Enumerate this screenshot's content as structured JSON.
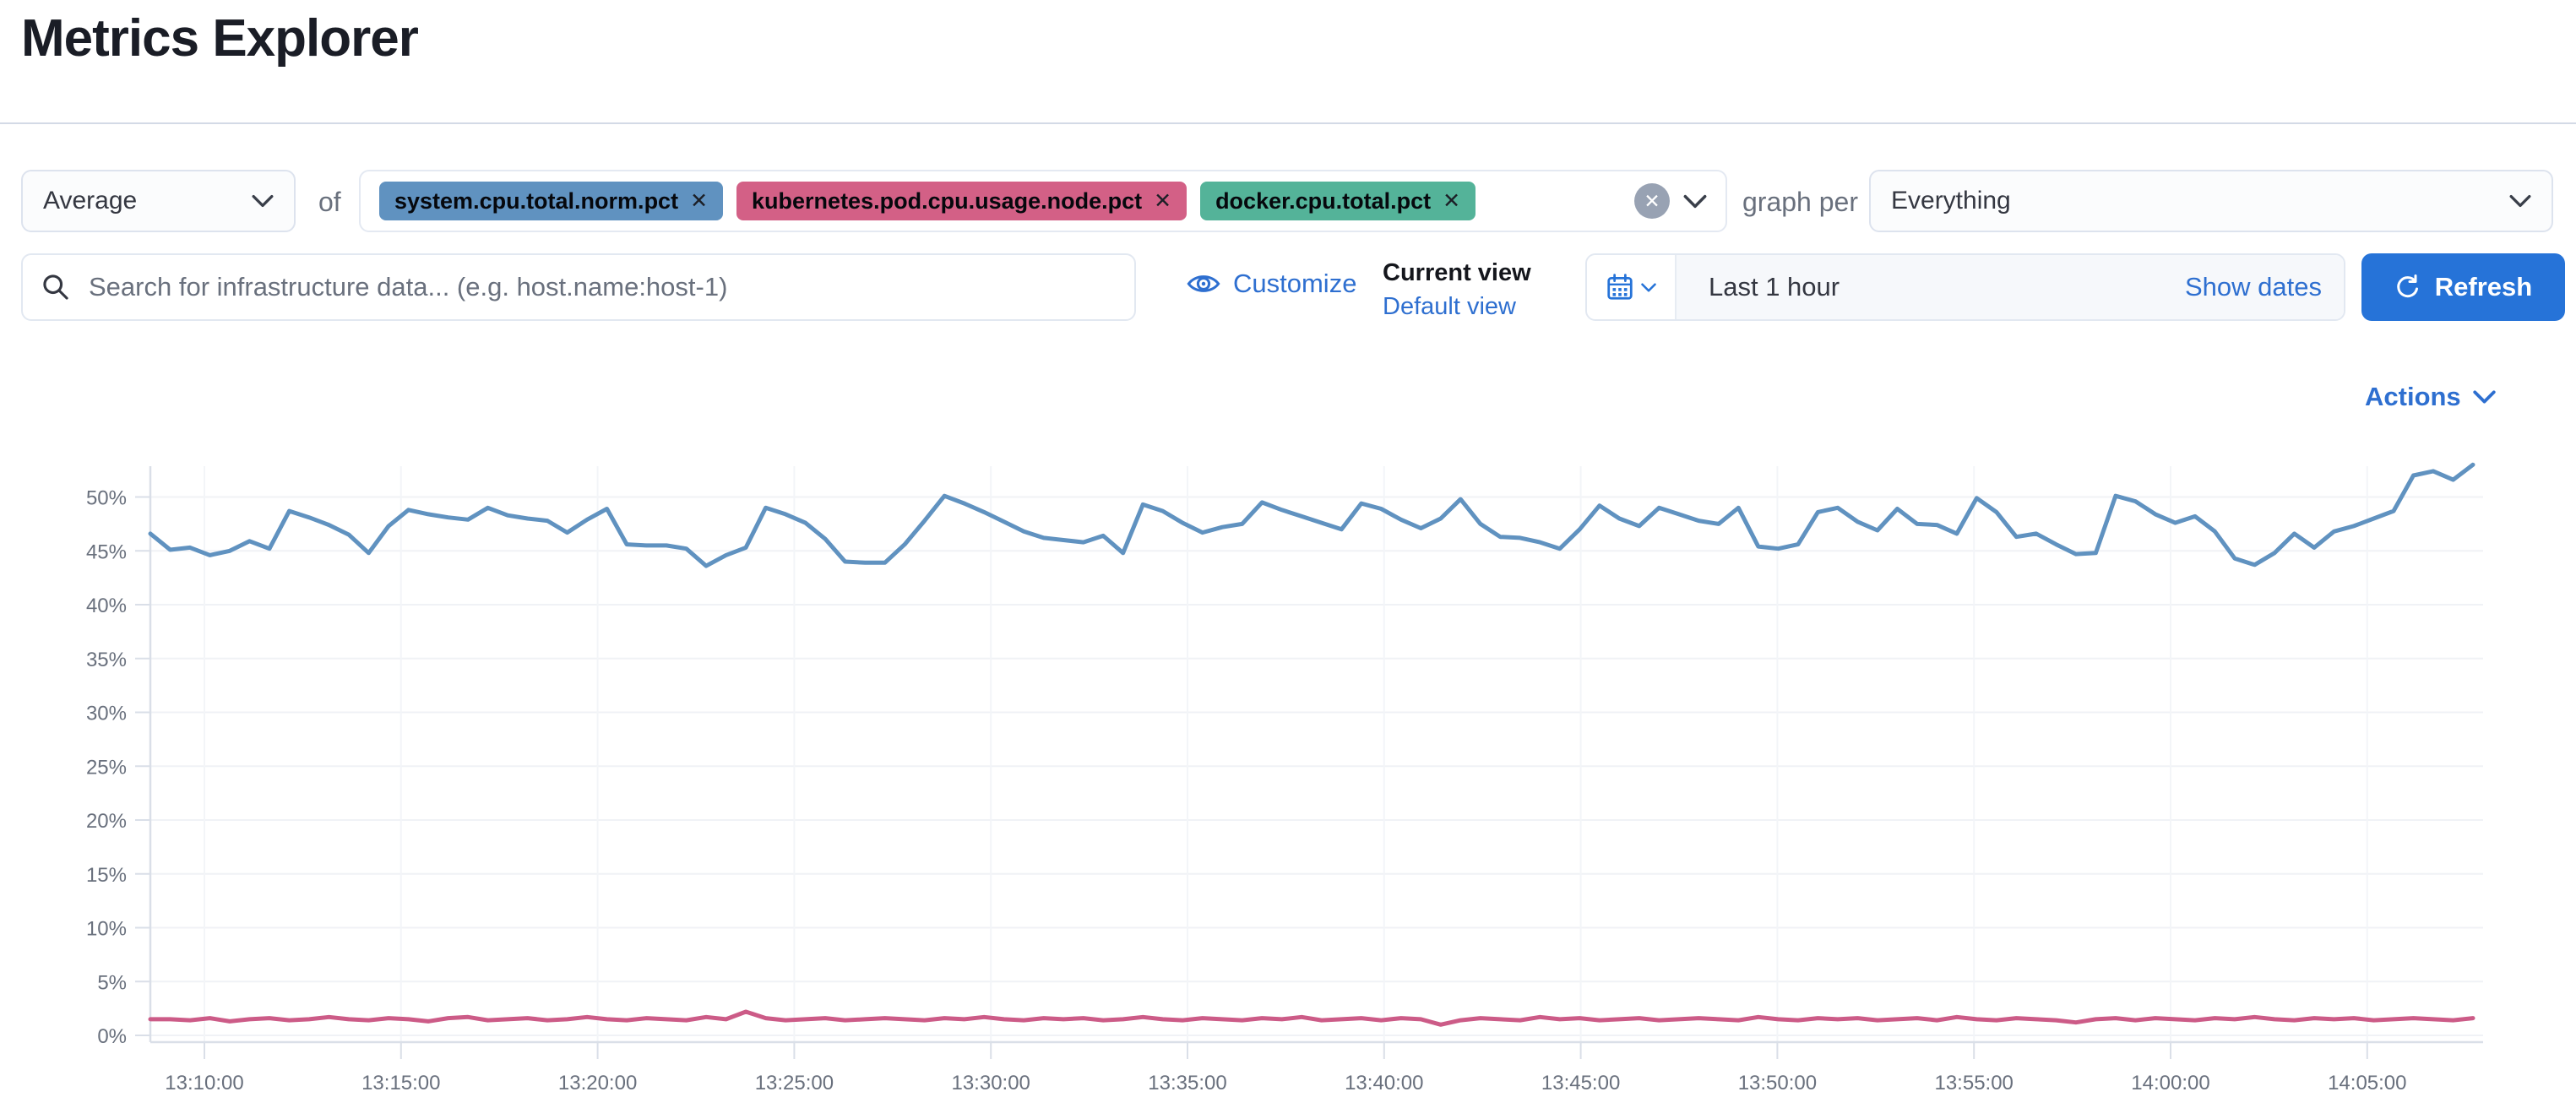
{
  "header": {
    "title": "Metrics Explorer"
  },
  "toolbar": {
    "aggregation": {
      "value": "Average"
    },
    "of_label": "of",
    "metrics": [
      {
        "label": "system.cpu.total.norm.pct",
        "color": "#6092C0",
        "remove_icon": "cross"
      },
      {
        "label": "kubernetes.pod.cpu.usage.node.pct",
        "color": "#D36086",
        "remove_icon": "cross"
      },
      {
        "label": "docker.cpu.total.pct",
        "color": "#54B399",
        "remove_icon": "cross"
      }
    ],
    "graph_per_label": "graph per",
    "graph_per": {
      "value": "Everything"
    }
  },
  "search": {
    "placeholder": "Search for infrastructure data... (e.g. host.name:host-1)"
  },
  "view_controls": {
    "customize_label": "Customize",
    "current_view_label": "Current view",
    "default_view_label": "Default view"
  },
  "datepicker": {
    "value": "Last 1 hour",
    "show_dates_label": "Show dates",
    "refresh_label": "Refresh"
  },
  "actions_label": "Actions",
  "colors": {
    "primary_blue": "#2673d8",
    "link_blue": "#2e6fd0",
    "axis_text": "#69707d",
    "gridline": "#f0f2f6",
    "axis_line": "#dadfe8"
  },
  "chart_data": {
    "type": "line",
    "title": "",
    "xlabel": "",
    "ylabel": "",
    "ylim": [
      0,
      55
    ],
    "grid": true,
    "legend_position": "none",
    "x_tick_labels": [
      "13:10:00",
      "13:15:00",
      "13:20:00",
      "13:25:00",
      "13:30:00",
      "13:35:00",
      "13:40:00",
      "13:45:00",
      "13:50:00",
      "13:55:00",
      "14:00:00",
      "14:05:00"
    ],
    "y_tick_labels": [
      "0%",
      "5%",
      "10%",
      "15%",
      "20%",
      "25%",
      "30%",
      "35%",
      "40%",
      "45%",
      "50%"
    ],
    "y_tick_values": [
      0,
      5,
      10,
      15,
      20,
      25,
      30,
      35,
      40,
      45,
      50
    ],
    "series": [
      {
        "name": "system.cpu.total.norm.pct",
        "color": "#6092C0",
        "unit": "%",
        "values": [
          46.6,
          45.1,
          45.3,
          44.6,
          45.0,
          45.9,
          45.2,
          48.7,
          48.1,
          47.4,
          46.5,
          44.8,
          47.3,
          48.8,
          48.4,
          48.1,
          47.9,
          49.0,
          48.3,
          48.0,
          47.8,
          46.7,
          47.9,
          48.9,
          45.6,
          45.5,
          45.5,
          45.2,
          43.6,
          44.6,
          45.3,
          49.0,
          48.4,
          47.6,
          46.1,
          44.0,
          43.9,
          43.9,
          45.6,
          47.8,
          50.1,
          49.4,
          48.6,
          47.7,
          46.8,
          46.2,
          46.0,
          45.8,
          46.4,
          44.8,
          49.3,
          48.7,
          47.6,
          46.7,
          47.2,
          47.5,
          49.5,
          48.8,
          48.2,
          47.6,
          47.0,
          49.4,
          48.9,
          47.9,
          47.1,
          48.0,
          49.8,
          47.5,
          46.3,
          46.2,
          45.8,
          45.2,
          47.0,
          49.2,
          48.0,
          47.3,
          49.0,
          48.4,
          47.8,
          47.5,
          49.0,
          45.4,
          45.2,
          45.6,
          48.6,
          49.0,
          47.7,
          46.9,
          48.9,
          47.5,
          47.4,
          46.6,
          49.9,
          48.6,
          46.3,
          46.6,
          45.6,
          44.7,
          44.8,
          50.1,
          49.6,
          48.4,
          47.6,
          48.2,
          46.8,
          44.3,
          43.7,
          44.8,
          46.6,
          45.3,
          46.8,
          47.3,
          48.0,
          48.7,
          52.0,
          52.4,
          51.6,
          53.0
        ]
      },
      {
        "name": "kubernetes.pod.cpu.usage.node.pct",
        "color": "#CC5B87",
        "unit": "%",
        "values": [
          1.5,
          1.5,
          1.4,
          1.6,
          1.3,
          1.5,
          1.6,
          1.4,
          1.5,
          1.7,
          1.5,
          1.4,
          1.6,
          1.5,
          1.3,
          1.6,
          1.7,
          1.4,
          1.5,
          1.6,
          1.4,
          1.5,
          1.7,
          1.5,
          1.4,
          1.6,
          1.5,
          1.4,
          1.7,
          1.5,
          2.2,
          1.6,
          1.4,
          1.5,
          1.6,
          1.4,
          1.5,
          1.6,
          1.5,
          1.4,
          1.6,
          1.5,
          1.7,
          1.5,
          1.4,
          1.6,
          1.5,
          1.6,
          1.4,
          1.5,
          1.7,
          1.5,
          1.4,
          1.6,
          1.5,
          1.4,
          1.6,
          1.5,
          1.7,
          1.4,
          1.5,
          1.6,
          1.4,
          1.6,
          1.5,
          1.0,
          1.4,
          1.6,
          1.5,
          1.4,
          1.7,
          1.5,
          1.6,
          1.4,
          1.5,
          1.6,
          1.4,
          1.5,
          1.6,
          1.5,
          1.4,
          1.7,
          1.5,
          1.4,
          1.6,
          1.5,
          1.6,
          1.4,
          1.5,
          1.6,
          1.4,
          1.7,
          1.5,
          1.4,
          1.6,
          1.5,
          1.4,
          1.2,
          1.5,
          1.6,
          1.4,
          1.6,
          1.5,
          1.4,
          1.6,
          1.5,
          1.7,
          1.5,
          1.4,
          1.6,
          1.5,
          1.6,
          1.4,
          1.5,
          1.6,
          1.5,
          1.4,
          1.6
        ]
      }
    ]
  }
}
